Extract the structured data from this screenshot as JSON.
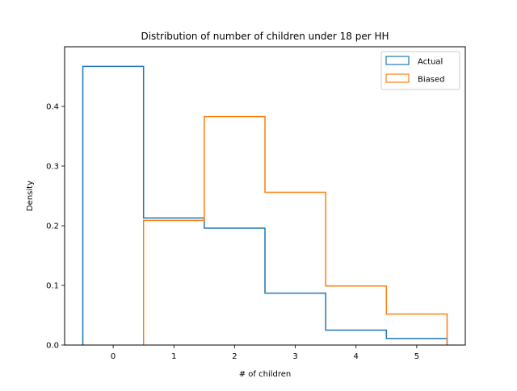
{
  "chart_data": {
    "type": "histogram",
    "title": "Distribution of number of children under 18 per HH",
    "xlabel": "# of children",
    "ylabel": "Density",
    "xlim": [
      -0.8,
      5.8
    ],
    "ylim": [
      0,
      0.5
    ],
    "xticks": [
      0,
      1,
      2,
      3,
      4,
      5
    ],
    "yticks": [
      0.0,
      0.1,
      0.2,
      0.3,
      0.4
    ],
    "ytick_labels": [
      "0.0",
      "0.1",
      "0.2",
      "0.3",
      "0.4"
    ],
    "grid": false,
    "legend_position": "top-right",
    "histtype": "step",
    "series": [
      {
        "name": "Actual",
        "color": "#1f77b4",
        "bin_edges": [
          -0.5,
          0.5,
          1.5,
          2.5,
          3.5,
          4.5,
          5.5
        ],
        "values": [
          0.467,
          0.213,
          0.196,
          0.087,
          0.025,
          0.011
        ]
      },
      {
        "name": "Biased",
        "color": "#ff7f0e",
        "bin_edges": [
          0.5,
          1.5,
          2.5,
          3.5,
          4.5,
          5.5
        ],
        "values": [
          0.209,
          0.383,
          0.256,
          0.099,
          0.052
        ]
      }
    ]
  }
}
